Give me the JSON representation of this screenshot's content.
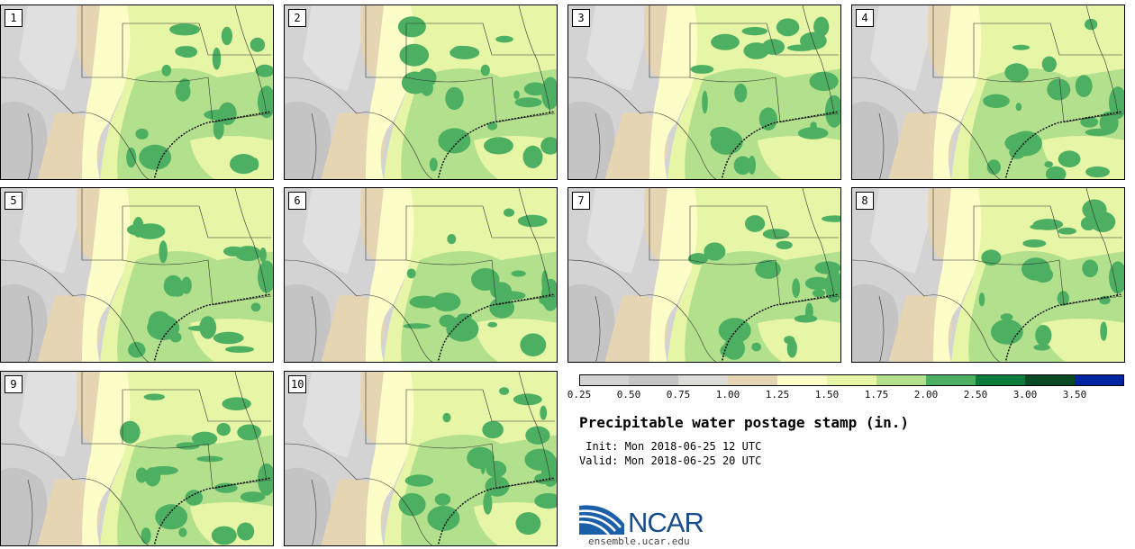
{
  "panels": [
    {
      "label": "1"
    },
    {
      "label": "2"
    },
    {
      "label": "3"
    },
    {
      "label": "4"
    },
    {
      "label": "5"
    },
    {
      "label": "6"
    },
    {
      "label": "7"
    },
    {
      "label": "8"
    },
    {
      "label": "9"
    },
    {
      "label": "10"
    }
  ],
  "colorbar": {
    "ticks": [
      "0.25",
      "0.50",
      "0.75",
      "1.00",
      "1.25",
      "1.50",
      "1.75",
      "2.00",
      "2.50",
      "3.00",
      "3.50"
    ],
    "colors": [
      "#d3d3d3",
      "#c4c4c4",
      "#dcdcd6",
      "#e6d5b3",
      "#fdfdc8",
      "#e6f5a6",
      "#b3e08c",
      "#4caf62",
      "#0c7c3c",
      "#084a24",
      "#0024a0"
    ]
  },
  "title": "Precipitable water postage stamp (in.)",
  "init_line": " Init: Mon 2018-06-25 12 UTC",
  "valid_line": "Valid: Mon 2018-06-25 20 UTC",
  "logo": {
    "name": "NCAR",
    "url": "ensemble.ucar.edu"
  }
}
